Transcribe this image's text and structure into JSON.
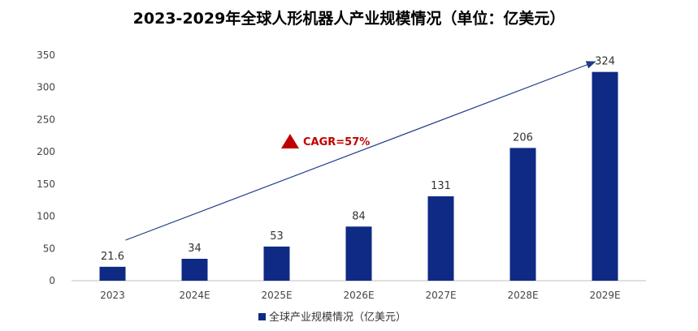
{
  "chart_data": {
    "type": "bar",
    "title": "2023-2029年全球人形机器人产业规模情况（单位：亿美元）",
    "categories": [
      "2023",
      "2024E",
      "2025E",
      "2026E",
      "2027E",
      "2028E",
      "2029E"
    ],
    "series": [
      {
        "name": "全球产业规模情况（亿美元）",
        "values": [
          21.6,
          34,
          53,
          84,
          131,
          206,
          324
        ],
        "labels": [
          "21.6",
          "34",
          "53",
          "84",
          "131",
          "206",
          "324"
        ],
        "color": "#0f2a84"
      }
    ],
    "ylim": [
      0,
      350
    ],
    "yticks": [
      0,
      50,
      100,
      150,
      200,
      250,
      300,
      350
    ],
    "grid": false,
    "legend": "bottom-center",
    "annotation": {
      "text": "CAGR=57%",
      "marker": "triangle-up-icon",
      "color": "#c00000",
      "arrow": {
        "from_category": "2023",
        "to_category": "2029E",
        "color": "#1f3c88"
      }
    }
  }
}
